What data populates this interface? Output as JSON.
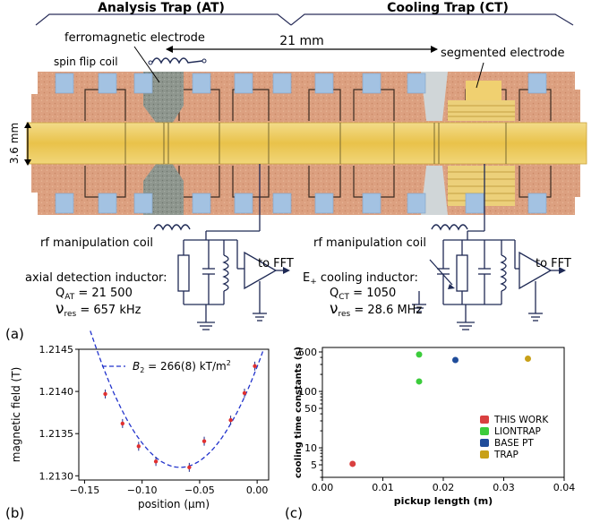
{
  "panel_a": {
    "label": "(a)",
    "analysis_trap_title": "Analysis Trap (AT)",
    "cooling_trap_title": "Cooling Trap (CT)",
    "ferromagnetic_label": "ferromagnetic electrode",
    "distance_label": "21 mm",
    "spin_flip_label": "spin flip coil",
    "segmented_label": "segmented electrode",
    "diameter_label": "3.6 mm",
    "rf_coil_left_label": "rf manipulation coil",
    "rf_coil_right_label": "rf manipulation coil",
    "to_fft_left": "to FFT",
    "to_fft_right": "to FFT",
    "axial_inductor_label": "axial detection inductor:",
    "q_at_label": "Q",
    "q_at_sub": "AT",
    "q_at_value": " = 21 500",
    "nu_at_sub": "res",
    "nu_at_value": " = 657 kHz",
    "cooling_inductor_prefix": "E",
    "cooling_inductor_sub": "+",
    "cooling_inductor_label": " cooling inductor:",
    "q_ct_label": "Q",
    "q_ct_sub": "CT",
    "q_ct_value": " = 1050",
    "nu_ct_sub": "res",
    "nu_ct_value": " = 28.6 MHz",
    "nu_symbol": "ν",
    "colors": {
      "copper": "#d9a080",
      "gold": "#e8c860",
      "electrode_blue": "#9bbfe0",
      "ferro_gray": "#909890",
      "trace": "#1f2a55"
    }
  },
  "panel_b": {
    "label": "(b)",
    "chart_data": {
      "type": "scatter",
      "xlabel": "position (μm)",
      "ylabel": "magnetic field (T)",
      "xlim": [
        -0.155,
        0.01
      ],
      "ylim": [
        1.21295,
        1.2145
      ],
      "xticks": [
        -0.15,
        -0.1,
        -0.05,
        0.0
      ],
      "xtick_labels": [
        "−0.15",
        "−0.10",
        "−0.05",
        "0.00"
      ],
      "yticks": [
        1.213,
        1.2135,
        1.214,
        1.2145
      ],
      "ytick_labels": [
        "1.2130",
        "1.2135",
        "1.2140",
        "1.2145"
      ],
      "points": [
        {
          "x": -0.132,
          "y": 1.21397
        },
        {
          "x": -0.117,
          "y": 1.21362
        },
        {
          "x": -0.103,
          "y": 1.21335
        },
        {
          "x": -0.088,
          "y": 1.21317
        },
        {
          "x": -0.059,
          "y": 1.2131
        },
        {
          "x": -0.046,
          "y": 1.21341
        },
        {
          "x": -0.023,
          "y": 1.21366
        },
        {
          "x": -0.011,
          "y": 1.21398
        },
        {
          "x": -0.002,
          "y": 1.2143
        }
      ],
      "fit": {
        "label": "B",
        "label_sub": "2",
        "label_value": " = 266(8) kT/m",
        "label_sup": "2",
        "vertex_x": -0.067,
        "vertex_y": 1.2131,
        "curvature": 0.266
      },
      "grid": false,
      "legend_position": "top"
    }
  },
  "panel_c": {
    "label": "(c)",
    "chart_data": {
      "type": "scatter",
      "xlabel": "pickup length (m)",
      "ylabel": "cooling time constants (s)",
      "xlim": [
        0,
        0.04
      ],
      "ylim": [
        3,
        600
      ],
      "yscale": "log",
      "xticks": [
        0,
        0.01,
        0.02,
        0.03,
        0.04
      ],
      "xtick_labels": [
        "0.00",
        "0.01",
        "0.02",
        "0.03",
        "0.04"
      ],
      "yticks": [
        5,
        10,
        50,
        100,
        500
      ],
      "ytick_labels": [
        "5",
        "10",
        "50",
        "100",
        "500"
      ],
      "series": [
        {
          "name": "THIS WORK",
          "color": "#d94040",
          "points": [
            {
              "x": 0.005,
              "y": 5.2
            }
          ]
        },
        {
          "name": "LIONTRAP",
          "color": "#3ccc3c",
          "points": [
            {
              "x": 0.016,
              "y": 450
            },
            {
              "x": 0.016,
              "y": 150
            }
          ]
        },
        {
          "name": "BASE PT",
          "color": "#1f4c9a",
          "points": [
            {
              "x": 0.022,
              "y": 360
            }
          ]
        },
        {
          "name": "TRAP",
          "color": "#c8a018",
          "points": [
            {
              "x": 0.034,
              "y": 380
            }
          ]
        }
      ],
      "legend_position": "lower-right"
    }
  }
}
